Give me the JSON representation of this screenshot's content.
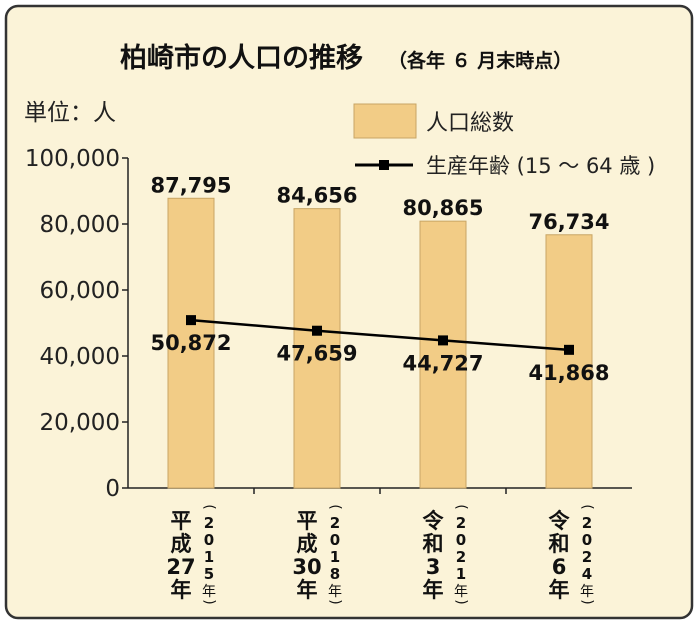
{
  "chart_data": {
    "type": "bar",
    "title": "柏崎市の人口の推移",
    "subtitle": "（各年 ６ 月末時点）",
    "unit_label": "単位：人",
    "categories": [
      {
        "era": "平成",
        "year": "27",
        "suffix": "年",
        "western": "2015"
      },
      {
        "era": "平成",
        "year": "30",
        "suffix": "年",
        "western": "2018"
      },
      {
        "era": "令和",
        "year": "3",
        "suffix": "年",
        "western": "2021"
      },
      {
        "era": "令和",
        "year": "6",
        "suffix": "年",
        "western": "2024"
      }
    ],
    "y_ticks": [
      "0",
      "20,000",
      "40,000",
      "60,000",
      "80,000",
      "100,000"
    ],
    "ylim": [
      0,
      100000
    ],
    "grid": false,
    "legend_position": "top-right",
    "series": [
      {
        "name": "人口総数",
        "kind": "bar",
        "color": "#F2CC86",
        "values": [
          87795,
          84656,
          80865,
          76734
        ],
        "labels": [
          "87,795",
          "84,656",
          "80,865",
          "76,734"
        ]
      },
      {
        "name": "生産年齢 (15 〜 64 歳 )",
        "kind": "line",
        "color": "#000000",
        "values": [
          50872,
          47659,
          44727,
          41868
        ],
        "labels": [
          "50,872",
          "47,659",
          "44,727",
          "41,868"
        ]
      }
    ],
    "colors": {
      "frame_bg": "#FBF3D8",
      "frame_border": "#333333",
      "bar_fill": "#F2CC86",
      "bar_stroke": "#C8A565",
      "line": "#000000"
    }
  }
}
